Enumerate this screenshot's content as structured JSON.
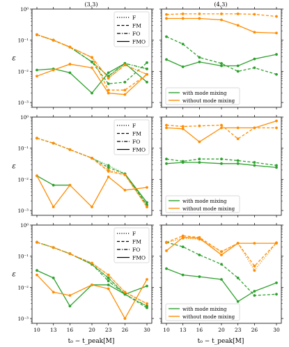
{
  "figure": {
    "ylabel_symbol": "ε",
    "xlabel": "t₀ − t_peak[M]",
    "x_ticks": [
      10,
      13,
      16,
      20,
      23,
      26,
      30
    ],
    "y_ticks": [
      "10⁻³",
      "10⁻²",
      "10⁻¹",
      "10⁰"
    ],
    "column_titles": [
      "(3,3)",
      "(4,3)"
    ]
  },
  "legends": {
    "linestyle": [
      "F",
      "FM",
      "FO",
      "FMO"
    ],
    "mixing": [
      "with mode mixing",
      "without mode mixing"
    ]
  },
  "colors": {
    "with": "#2ca02c",
    "without": "#ff8c00"
  },
  "chart_data": [
    {
      "type": "line",
      "row": 0,
      "col": 0,
      "yscale": "log",
      "ylim": [
        0.0007,
        1
      ],
      "x": [
        10,
        13,
        16,
        20,
        23,
        26,
        30
      ],
      "series": [
        {
          "group": "with",
          "style": "F",
          "values": [
            0.15,
            0.1,
            0.06,
            0.02,
            0.007,
            0.018,
            0.012
          ]
        },
        {
          "group": "with",
          "style": "FM",
          "values": [
            0.15,
            0.1,
            0.06,
            0.02,
            0.004,
            0.0045,
            0.019
          ]
        },
        {
          "group": "with",
          "style": "FO",
          "values": [
            0.15,
            0.1,
            0.06,
            0.02,
            0.007,
            0.018,
            0.012
          ]
        },
        {
          "group": "with",
          "style": "FMO",
          "values": [
            0.011,
            0.012,
            0.009,
            0.002,
            0.009,
            0.018,
            0.0045
          ]
        },
        {
          "group": "without",
          "style": "F",
          "values": [
            0.15,
            0.1,
            0.06,
            0.028,
            0.006,
            0.016,
            0.008
          ]
        },
        {
          "group": "without",
          "style": "FM",
          "values": [
            0.15,
            0.1,
            0.06,
            0.028,
            0.0025,
            0.0025,
            0.008
          ]
        },
        {
          "group": "without",
          "style": "FO",
          "values": [
            0.15,
            0.1,
            0.06,
            0.028,
            0.006,
            0.016,
            0.008
          ]
        },
        {
          "group": "without",
          "style": "FMO",
          "values": [
            0.007,
            0.011,
            0.017,
            0.013,
            0.002,
            0.0018,
            0.008
          ]
        }
      ]
    },
    {
      "type": "line",
      "row": 0,
      "col": 1,
      "yscale": "log",
      "ylim": [
        0.0007,
        1
      ],
      "x": [
        10,
        13,
        16,
        20,
        23,
        26,
        30
      ],
      "series": [
        {
          "group": "with",
          "style": "FM",
          "values": [
            0.13,
            0.075,
            0.028,
            0.018,
            0.01,
            0.013,
            0.008
          ]
        },
        {
          "group": "with",
          "style": "FMO",
          "values": [
            0.024,
            0.014,
            0.02,
            0.015,
            0.015,
            0.025,
            0.035
          ]
        },
        {
          "group": "without",
          "style": "FM",
          "values": [
            0.67,
            0.7,
            0.7,
            0.7,
            0.7,
            0.68,
            0.58
          ]
        },
        {
          "group": "without",
          "style": "FMO",
          "values": [
            0.5,
            0.5,
            0.5,
            0.45,
            0.3,
            0.18,
            0.17
          ]
        }
      ]
    },
    {
      "type": "line",
      "row": 1,
      "col": 0,
      "yscale": "log",
      "ylim": [
        0.0007,
        1
      ],
      "x": [
        10,
        13,
        16,
        20,
        23,
        26,
        30
      ],
      "series": [
        {
          "group": "with",
          "style": "F",
          "values": [
            0.21,
            0.145,
            0.09,
            0.048,
            0.028,
            0.015,
            0.0015
          ]
        },
        {
          "group": "with",
          "style": "FM",
          "values": [
            0.21,
            0.145,
            0.09,
            0.048,
            0.024,
            0.015,
            0.0015
          ]
        },
        {
          "group": "with",
          "style": "FMO",
          "values": [
            0.013,
            0.0065,
            0.0065,
            null,
            null,
            0.015,
            0.0018
          ]
        },
        {
          "group": "without",
          "style": "F",
          "values": [
            0.21,
            0.145,
            0.09,
            0.048,
            0.02,
            0.014,
            0.0013
          ]
        },
        {
          "group": "without",
          "style": "FM",
          "values": [
            0.21,
            0.145,
            0.09,
            0.048,
            0.018,
            0.014,
            0.0013
          ]
        },
        {
          "group": "without",
          "style": "FMO",
          "values": [
            0.013,
            0.0013,
            0.0065,
            0.0013,
            0.012,
            0.0045,
            0.0055
          ]
        }
      ]
    },
    {
      "type": "line",
      "row": 1,
      "col": 1,
      "yscale": "log",
      "ylim": [
        0.0007,
        1
      ],
      "x": [
        10,
        13,
        16,
        20,
        23,
        26,
        30
      ],
      "series": [
        {
          "group": "with",
          "style": "FM",
          "values": [
            0.045,
            0.038,
            0.045,
            0.045,
            0.04,
            0.035,
            0.028
          ]
        },
        {
          "group": "with",
          "style": "FMO",
          "values": [
            0.032,
            0.035,
            0.035,
            0.032,
            0.032,
            0.028,
            0.024
          ]
        },
        {
          "group": "without",
          "style": "FM",
          "values": [
            0.55,
            0.5,
            0.52,
            0.55,
            0.2,
            0.45,
            0.45
          ]
        },
        {
          "group": "without",
          "style": "FMO",
          "values": [
            0.45,
            0.42,
            0.16,
            0.45,
            0.45,
            0.45,
            0.75
          ]
        }
      ]
    },
    {
      "type": "line",
      "row": 2,
      "col": 0,
      "yscale": "log",
      "ylim": [
        0.0007,
        1
      ],
      "x": [
        10,
        13,
        16,
        20,
        23,
        26,
        30
      ],
      "series": [
        {
          "group": "with",
          "style": "F",
          "values": [
            0.28,
            0.19,
            0.12,
            0.055,
            0.02,
            0.006,
            0.0025
          ]
        },
        {
          "group": "with",
          "style": "FM",
          "values": [
            0.28,
            0.19,
            0.12,
            0.055,
            0.02,
            0.006,
            0.0022
          ]
        },
        {
          "group": "with",
          "style": "FO",
          "values": [
            0.28,
            0.19,
            0.12,
            0.055,
            0.016,
            0.006,
            0.0025
          ]
        },
        {
          "group": "with",
          "style": "FMO",
          "values": [
            0.035,
            0.02,
            0.0025,
            0.012,
            0.012,
            0.006,
            0.011
          ]
        },
        {
          "group": "without",
          "style": "F",
          "values": [
            0.28,
            0.19,
            0.12,
            0.06,
            0.025,
            0.007,
            0.003
          ]
        },
        {
          "group": "without",
          "style": "FM",
          "values": [
            0.28,
            0.19,
            0.12,
            0.06,
            0.025,
            0.007,
            0.003
          ]
        },
        {
          "group": "without",
          "style": "FMO",
          "values": [
            0.025,
            0.007,
            0.0055,
            0.012,
            0.009,
            0.001,
            0.018
          ]
        }
      ]
    },
    {
      "type": "line",
      "row": 2,
      "col": 1,
      "yscale": "log",
      "ylim": [
        0.0007,
        1
      ],
      "x": [
        10,
        13,
        16,
        20,
        23,
        26,
        30
      ],
      "series": [
        {
          "group": "with",
          "style": "FM",
          "values": [
            0.28,
            0.2,
            0.11,
            0.055,
            0.02,
            0.0055,
            0.006
          ]
        },
        {
          "group": "with",
          "style": "FMO",
          "values": [
            0.04,
            0.025,
            0.022,
            0.018,
            0.0035,
            0.0075,
            0.014
          ]
        },
        {
          "group": "without",
          "style": "F",
          "values": [
            0.27,
            0.38,
            0.35,
            0.14,
            0.26,
            0.035,
            0.27
          ]
        },
        {
          "group": "without",
          "style": "FM",
          "values": [
            0.28,
            0.45,
            0.4,
            0.14,
            0.26,
            0.048,
            0.27
          ]
        },
        {
          "group": "without",
          "style": "FMO",
          "values": [
            0.15,
            0.4,
            0.38,
            0.11,
            0.26,
            0.26,
            0.26
          ]
        }
      ]
    }
  ]
}
